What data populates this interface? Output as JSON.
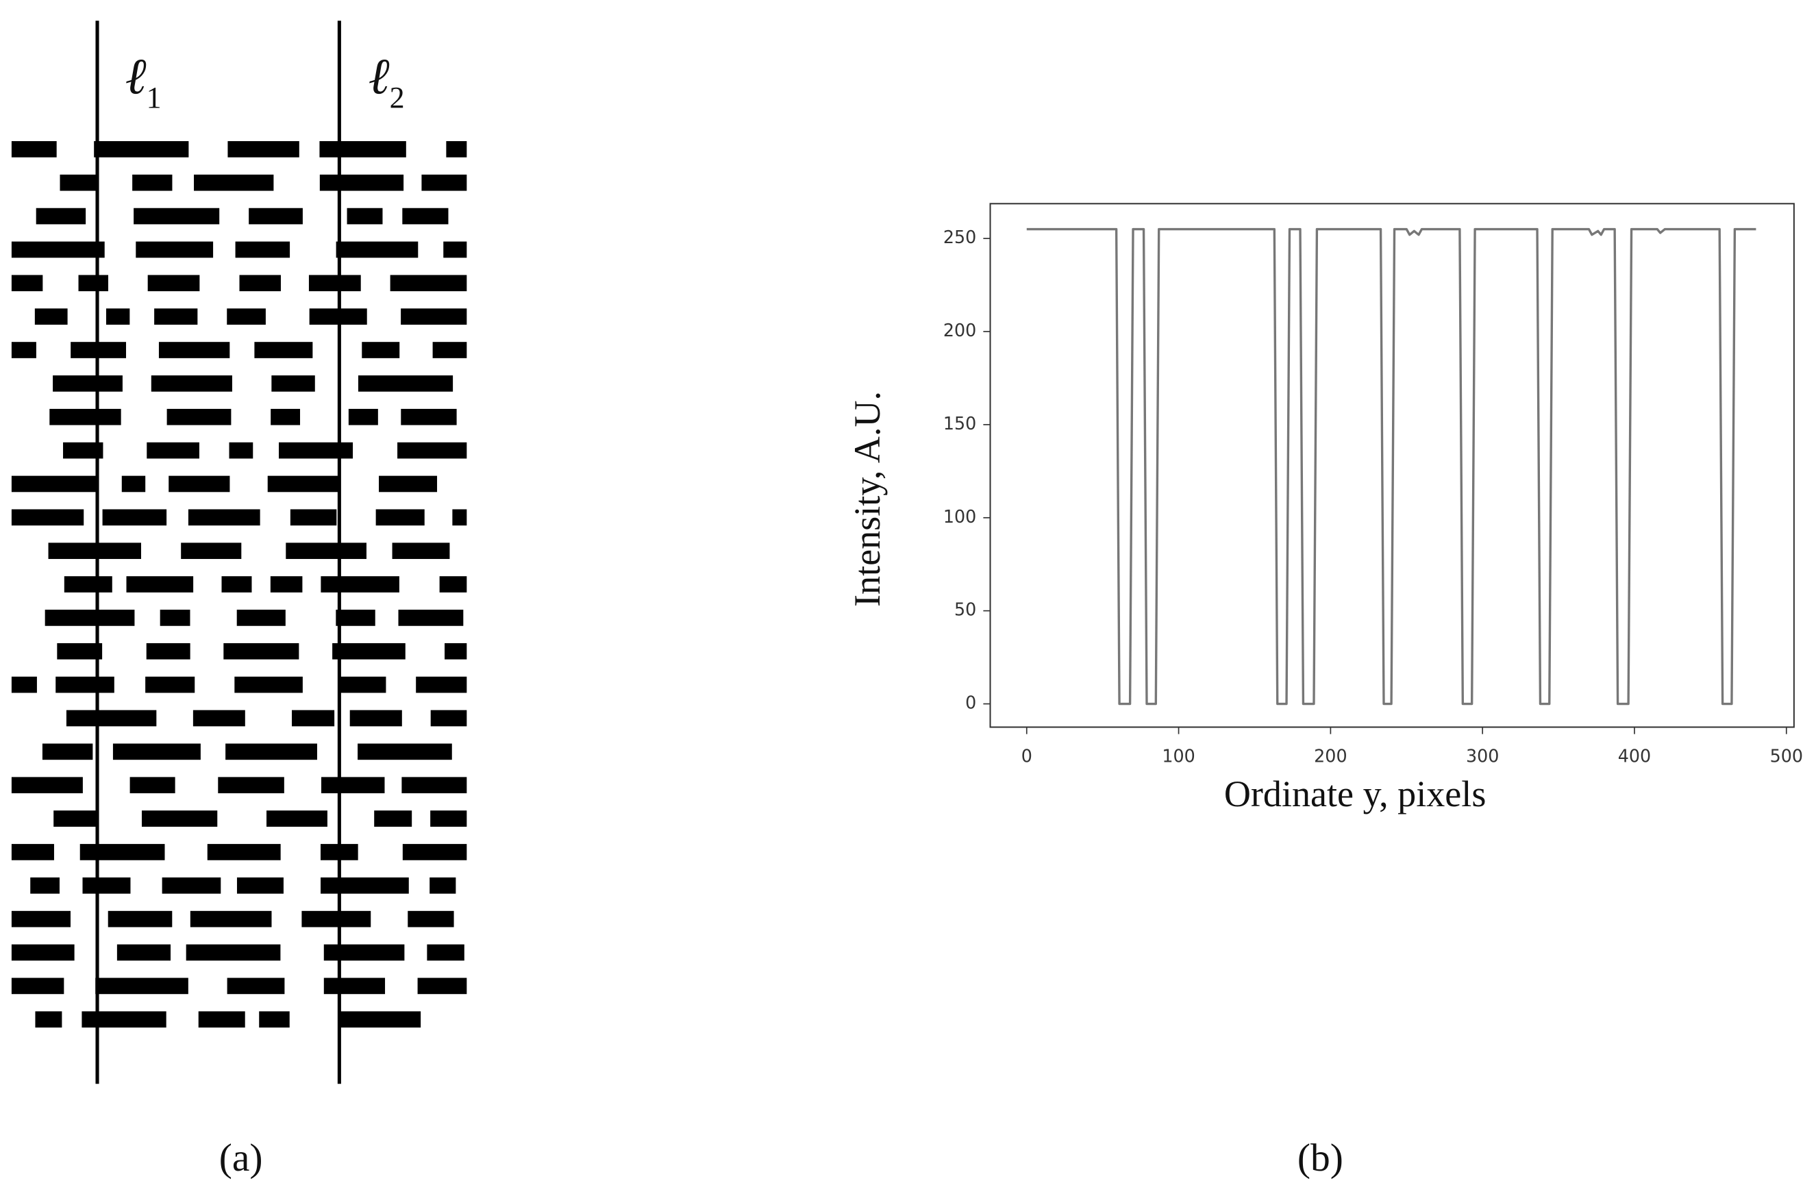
{
  "panel_a": {
    "label": "(a)",
    "lines": [
      {
        "symbol": "ℓ",
        "index": "1"
      },
      {
        "symbol": "ℓ",
        "index": "2"
      }
    ]
  },
  "panel_b": {
    "label": "(b)"
  },
  "chart_data": {
    "type": "line",
    "xlabel": "Ordinate y, pixels",
    "ylabel": "Intensity, A.U.",
    "color": "#777777",
    "x": [
      0,
      59,
      61,
      68,
      70,
      77,
      79,
      85,
      87,
      163,
      165,
      171,
      173,
      180,
      182,
      189,
      191,
      233,
      235,
      240,
      242,
      250,
      252,
      255,
      258,
      260,
      285,
      287,
      293,
      295,
      336,
      338,
      344,
      346,
      370,
      372,
      376,
      378,
      380,
      387,
      389,
      396,
      398,
      415,
      417,
      420,
      456,
      458,
      464,
      466,
      480
    ],
    "values": [
      255,
      255,
      0,
      0,
      255,
      255,
      0,
      0,
      255,
      255,
      0,
      0,
      255,
      255,
      0,
      0,
      255,
      255,
      0,
      0,
      255,
      255,
      252,
      254,
      252,
      255,
      255,
      0,
      0,
      255,
      255,
      0,
      0,
      255,
      255,
      252,
      254,
      252,
      255,
      255,
      0,
      0,
      255,
      255,
      253,
      255,
      255,
      0,
      0,
      255,
      255
    ],
    "xlim": [
      -24,
      505
    ],
    "ylim": [
      -12.5,
      268.7
    ],
    "xticks": [
      0,
      100,
      200,
      300,
      400,
      500
    ],
    "yticks": [
      0,
      50,
      100,
      150,
      200,
      250
    ]
  }
}
